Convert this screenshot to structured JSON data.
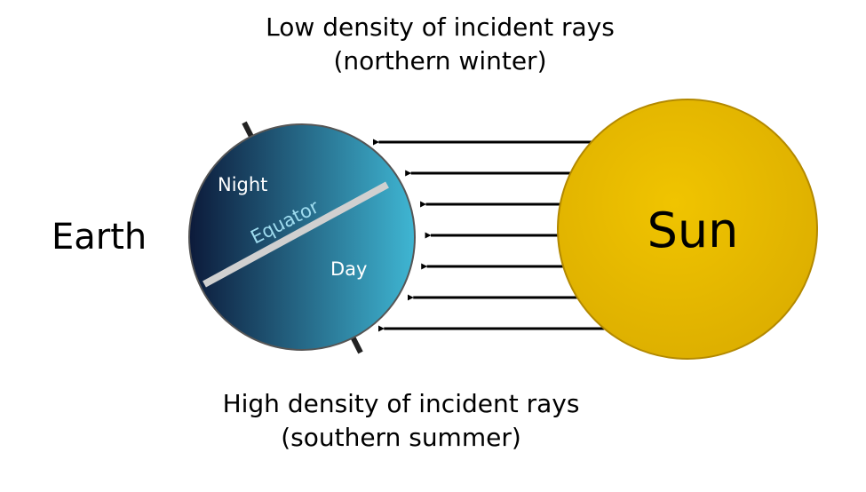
{
  "captions": {
    "top_line1": "Low density of incident rays",
    "top_line2": "(northern winter)",
    "bottom_line1": "High density of incident rays",
    "bottom_line2": "(southern summer)"
  },
  "labels": {
    "earth": "Earth",
    "sun": "Sun",
    "night": "Night",
    "day": "Day",
    "equator": "Equator"
  },
  "rays": {
    "count": 7
  },
  "colors": {
    "sun_fill": "#e6b800",
    "sun_stroke": "#b38900",
    "earth_dark": "#0c1a3a",
    "earth_light": "#3fb6d3",
    "equator": "#d0d0d0",
    "axis": "#222222",
    "ray": "#000000"
  }
}
